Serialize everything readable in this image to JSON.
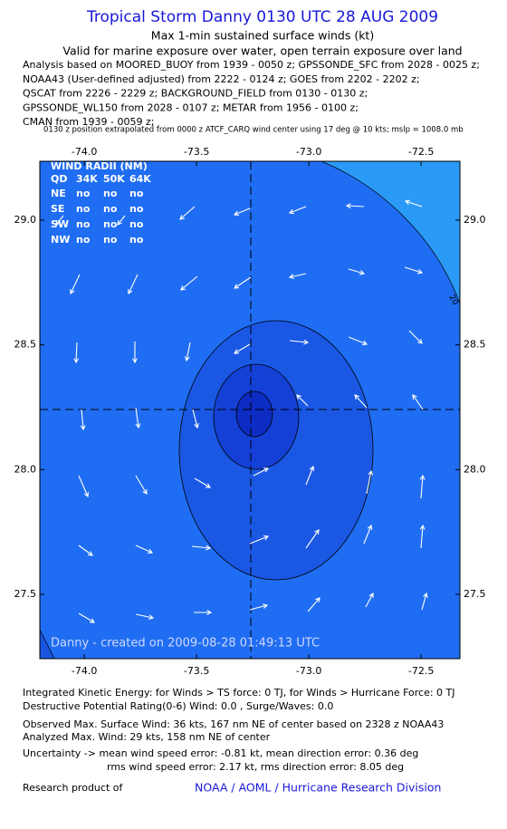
{
  "header": {
    "title": "Tropical Storm Danny 0130 UTC 28 AUG 2009",
    "subtitle": [
      "Max 1-min sustained surface winds (kt)",
      "Valid for marine exposure over water, open terrain exposure over land"
    ],
    "analysis": [
      "Analysis based on  MOORED_BUOY from 1939 - 0050 z;  GPSSONDE_SFC from 2028 - 0025 z;",
      "NOAA43 (User-defined adjusted) from 2222 - 0124 z;  GOES from 2202 - 2202 z;",
      "QSCAT from 2226 - 2229 z;  BACKGROUND_FIELD from 0130 - 0130 z;",
      "GPSSONDE_WL150 from 2028 - 0107 z;  METAR from 1956 - 0100 z;",
      "CMAN from 1939 - 0059 z;"
    ],
    "note": "0130 z position extrapolated from 0000 z ATCF_CARQ wind center using 17 deg @ 10 kts;  mslp = 1008.0 mb"
  },
  "map": {
    "xlim": [
      -74.198,
      -72.327
    ],
    "ylim": [
      27.242,
      29.236
    ],
    "xticks": [
      {
        "value": -74,
        "label": "-74.0"
      },
      {
        "value": -73.5,
        "label": "-73.5"
      },
      {
        "value": -73,
        "label": "-73.0"
      },
      {
        "value": -72.5,
        "label": "-72.5"
      }
    ],
    "yticks": [
      {
        "value": 29,
        "label": "29.0"
      },
      {
        "value": 28.5,
        "label": "28.5"
      },
      {
        "value": 28,
        "label": "28.0"
      },
      {
        "value": 27.5,
        "label": "27.5"
      }
    ],
    "wind_radii": {
      "title": "WIND RADII (NM)",
      "columns": [
        "QD",
        "34K",
        "50K",
        "64K"
      ],
      "rows": [
        [
          "NE",
          "no",
          "no",
          "no"
        ],
        [
          "SE",
          "no",
          "no",
          "no"
        ],
        [
          "SW",
          "no",
          "no",
          "no"
        ],
        [
          "NW",
          "no",
          "no",
          "no"
        ]
      ]
    },
    "contour_label": "20",
    "annotation": "Danny - created on 2009-08-28 01:49:13 UTC"
  },
  "footer": {
    "lines": [
      "Integrated Kinetic Energy:  for Winds > TS force: 0 TJ,  for Winds > Hurricane Force: 0 TJ",
      "Destructive Potential Rating(0-6)   Wind: 0.0 , Surge/Waves: 0.0",
      "Observed Max. Surface Wind: 36 kts, 167 nm NE of center based on 2328 z NOAA43",
      "Analyzed Max. Wind: 29 kts, 158 nm NE of center",
      "Uncertainty -> mean wind speed error:  -0.81 kt,   mean direction error: 0.36 deg",
      "rms wind speed error: 2.17 kt,   rms direction error: 8.05 deg"
    ],
    "research": "Research product of",
    "credit": "NOAA / AOML / Hurricane Research Division"
  }
}
